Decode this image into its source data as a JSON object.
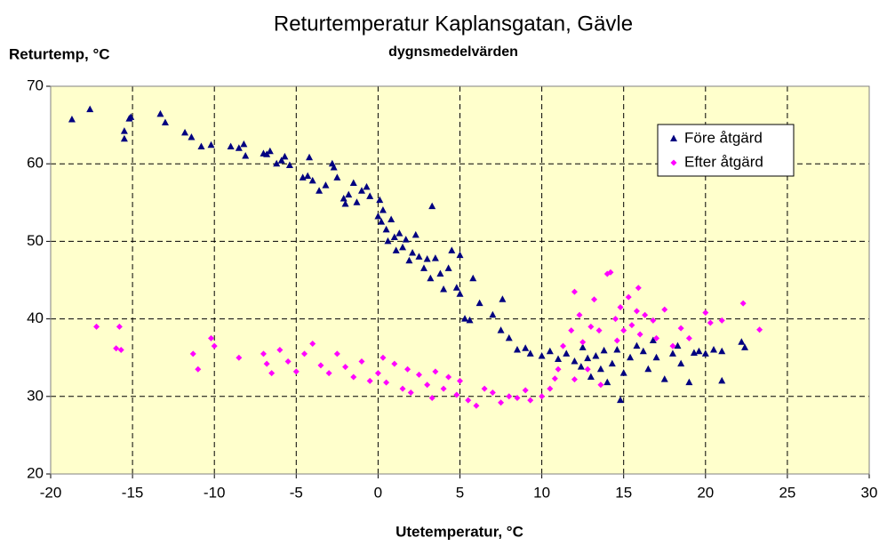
{
  "chart_data": {
    "type": "scatter",
    "title": "Returtemperatur Kaplansgatan, Gävle",
    "subtitle": "dygnsmedelvärden",
    "x_label": "Utetemperatur, °C",
    "y_label": "Returtemp, °C",
    "xlim": [
      -20,
      30
    ],
    "xticks": [
      -20,
      -15,
      -10,
      -5,
      0,
      5,
      10,
      15,
      20,
      25,
      30
    ],
    "ylim": [
      20,
      70
    ],
    "yticks": [
      20,
      30,
      40,
      50,
      60,
      70
    ],
    "grid": true,
    "legend": "upper right",
    "background": "#ffffcc",
    "series": [
      {
        "name": "Före åtgärd",
        "color": "#000080",
        "marker": "triangle",
        "x": [
          -18.7,
          -17.6,
          -15.5,
          -15.5,
          -15.2,
          -15.1,
          -13.3,
          -13,
          -11.8,
          -11.4,
          -10.8,
          -10.2,
          -9,
          -8.5,
          -8.2,
          -8.1,
          -7,
          -6.8,
          -6.6,
          -6.2,
          -5.9,
          -5.7,
          -5.4,
          -4.6,
          -4.3,
          -4.2,
          -4,
          -3.6,
          -3.2,
          -2.8,
          -2.7,
          -2.5,
          -2.1,
          -2,
          -1.8,
          -1.5,
          -1.3,
          -1,
          -0.7,
          -0.5,
          0,
          0.1,
          0.2,
          0.3,
          0.5,
          0.6,
          0.8,
          1,
          1.1,
          1.3,
          1.5,
          1.7,
          1.9,
          2.1,
          2.3,
          2.5,
          2.8,
          3,
          3.2,
          3.3,
          3.5,
          3.8,
          4,
          4.3,
          4.5,
          4.8,
          5,
          5,
          5.3,
          5.6,
          5.8,
          6.2,
          7,
          7.5,
          7.6,
          8,
          8.5,
          9,
          9.3,
          10,
          10.5,
          11,
          11.5,
          12,
          12.4,
          12.8,
          13,
          13.3,
          13.6,
          14,
          14.3,
          14.8,
          15,
          15.4,
          15.8,
          16.2,
          16.5,
          17,
          17.5,
          18,
          18.3,
          18.5,
          19,
          19.3,
          19.6,
          20,
          20.5,
          21,
          21,
          22.2,
          22.4,
          12.5,
          14.6,
          16.8,
          13.8
        ],
        "values": [
          65.7,
          67,
          64.2,
          63.2,
          65.8,
          66,
          66.4,
          65.3,
          64,
          63.4,
          62.2,
          62.4,
          62.2,
          62,
          62.5,
          61,
          61.3,
          61.2,
          61.6,
          60,
          60.4,
          60.9,
          59.8,
          58.2,
          58.4,
          60.8,
          57.8,
          56.5,
          57.2,
          60,
          59.5,
          58.2,
          55.5,
          54.8,
          56,
          57.5,
          55,
          56.5,
          57,
          55.8,
          53.2,
          55.3,
          52.5,
          54,
          51.5,
          50,
          52.8,
          50.5,
          48.8,
          51,
          49.2,
          50.2,
          47.5,
          48.5,
          50.8,
          48,
          46.5,
          47.7,
          45.2,
          54.5,
          47.8,
          45.8,
          43.8,
          46.5,
          48.8,
          44,
          43.2,
          48.2,
          40,
          39.8,
          45.2,
          42,
          40.5,
          38.5,
          42.5,
          37.5,
          36,
          36.2,
          35.5,
          35.2,
          35.8,
          34.8,
          35.5,
          34.5,
          33.8,
          34.9,
          32.5,
          35.2,
          33.5,
          31.8,
          34.2,
          29.5,
          33,
          35,
          36.5,
          35.8,
          33.5,
          35,
          32.2,
          35.5,
          36.5,
          34.2,
          31.8,
          35.6,
          35.8,
          35.5,
          36,
          32,
          35.8,
          37,
          36.3,
          36.3,
          36,
          37.2,
          35.9
        ]
      },
      {
        "name": "Efter åtgärd",
        "color": "#ff00ff",
        "marker": "diamond",
        "x": [
          -17.2,
          -16,
          -15.8,
          -15.7,
          -11.3,
          -11,
          -10.2,
          -10,
          -8.5,
          -7,
          -6.8,
          -6.5,
          -6,
          -5.5,
          -5,
          -4.5,
          -4,
          -3.5,
          -3,
          -2.5,
          -2,
          -1.5,
          -1,
          -0.5,
          0,
          0.3,
          0.5,
          1,
          1.5,
          1.8,
          2,
          2.5,
          3,
          3.3,
          3.5,
          4,
          4.3,
          4.8,
          5,
          5.5,
          6,
          6.5,
          7,
          7.5,
          8,
          8.5,
          9,
          9.3,
          10,
          10.5,
          11,
          11.3,
          11.8,
          12,
          12.3,
          12.5,
          13,
          13.2,
          13.5,
          14,
          14.2,
          14.5,
          14.8,
          15,
          15.3,
          15.5,
          15.8,
          16,
          16.3,
          16.8,
          17,
          17.5,
          18,
          18.5,
          19,
          20,
          20.3,
          21,
          22.3,
          23.3,
          12.8,
          14.6,
          13.6,
          10.8,
          15.9,
          12
        ],
        "values": [
          39,
          36.2,
          39,
          36,
          35.5,
          33.5,
          37.5,
          36.5,
          35,
          35.5,
          34.2,
          33,
          36,
          34.5,
          33.2,
          35.5,
          36.8,
          34,
          33,
          35.5,
          33.8,
          32.5,
          34.5,
          32,
          33,
          35,
          31.8,
          34.2,
          31,
          33.5,
          30.5,
          32.8,
          31.5,
          29.8,
          33.2,
          31,
          32.5,
          30.2,
          32,
          29.5,
          28.8,
          31,
          30.5,
          29.2,
          30,
          29.8,
          30.8,
          29.5,
          30,
          31,
          33.5,
          36.5,
          38.5,
          43.5,
          40.5,
          37,
          39,
          42.5,
          38.5,
          45.8,
          46,
          40,
          41.5,
          38.5,
          42.8,
          39.2,
          41,
          38,
          40.5,
          39.8,
          37.5,
          41.2,
          36.5,
          38.8,
          37.5,
          40.8,
          39.5,
          39.8,
          42,
          38.6,
          33.5,
          37.2,
          31.5,
          32.3,
          44,
          32.2
        ]
      }
    ]
  }
}
